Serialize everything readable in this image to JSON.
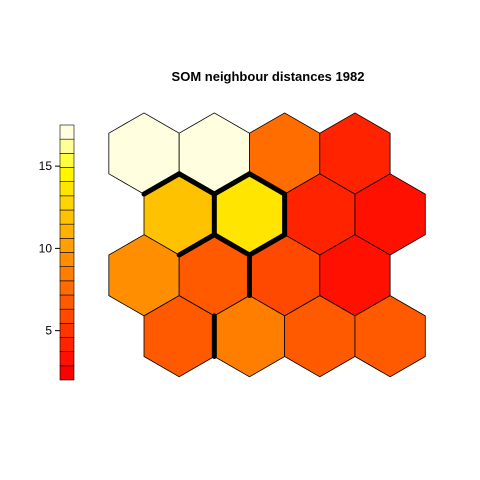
{
  "chart_data": {
    "type": "heatmap",
    "title": "SOM neighbour distances 1982",
    "grid": {
      "rows": 4,
      "cols": 4,
      "topology": "hexagonal"
    },
    "cells": [
      {
        "row": 1,
        "col": 1,
        "value": 17.0
      },
      {
        "row": 1,
        "col": 2,
        "value": 16.9
      },
      {
        "row": 1,
        "col": 3,
        "value": 7.5
      },
      {
        "row": 1,
        "col": 4,
        "value": 4.5
      },
      {
        "row": 2,
        "col": 1,
        "value": 11.5
      },
      {
        "row": 2,
        "col": 2,
        "value": 14.0
      },
      {
        "row": 2,
        "col": 3,
        "value": 4.5
      },
      {
        "row": 2,
        "col": 4,
        "value": 3.0
      },
      {
        "row": 3,
        "col": 1,
        "value": 9.0
      },
      {
        "row": 3,
        "col": 2,
        "value": 7.0
      },
      {
        "row": 3,
        "col": 3,
        "value": 5.5
      },
      {
        "row": 3,
        "col": 4,
        "value": 3.5
      },
      {
        "row": 4,
        "col": 1,
        "value": 6.5
      },
      {
        "row": 4,
        "col": 2,
        "value": 8.5
      },
      {
        "row": 4,
        "col": 3,
        "value": 7.0
      },
      {
        "row": 4,
        "col": 4,
        "value": 6.5
      }
    ],
    "boundaries": [
      {
        "between": [
          [
            1,
            1
          ],
          [
            2,
            1
          ]
        ]
      },
      {
        "between": [
          [
            1,
            2
          ],
          [
            2,
            1
          ]
        ]
      },
      {
        "between": [
          [
            1,
            2
          ],
          [
            2,
            2
          ]
        ]
      },
      {
        "between": [
          [
            1,
            3
          ],
          [
            2,
            2
          ]
        ]
      },
      {
        "between": [
          [
            2,
            1
          ],
          [
            2,
            2
          ]
        ]
      },
      {
        "between": [
          [
            2,
            2
          ],
          [
            2,
            3
          ]
        ]
      },
      {
        "between": [
          [
            2,
            1
          ],
          [
            3,
            2
          ]
        ]
      },
      {
        "between": [
          [
            2,
            2
          ],
          [
            3,
            2
          ]
        ]
      },
      {
        "between": [
          [
            2,
            2
          ],
          [
            3,
            3
          ]
        ]
      },
      {
        "between": [
          [
            3,
            2
          ],
          [
            3,
            3
          ]
        ]
      },
      {
        "between": [
          [
            4,
            1
          ],
          [
            4,
            2
          ]
        ]
      }
    ],
    "colorbar": {
      "range": [
        2,
        17.5
      ],
      "ticks": [
        5,
        10,
        15
      ],
      "colors": [
        "#ff0000",
        "#ff1000",
        "#ff2300",
        "#ff3500",
        "#ff4800",
        "#ff5a00",
        "#ff6c00",
        "#ff7e00",
        "#ff8f00",
        "#ffa000",
        "#ffb100",
        "#ffc200",
        "#ffd400",
        "#ffe500",
        "#fff700",
        "#ffff40",
        "#ffff9a",
        "#ffffe0"
      ]
    }
  }
}
